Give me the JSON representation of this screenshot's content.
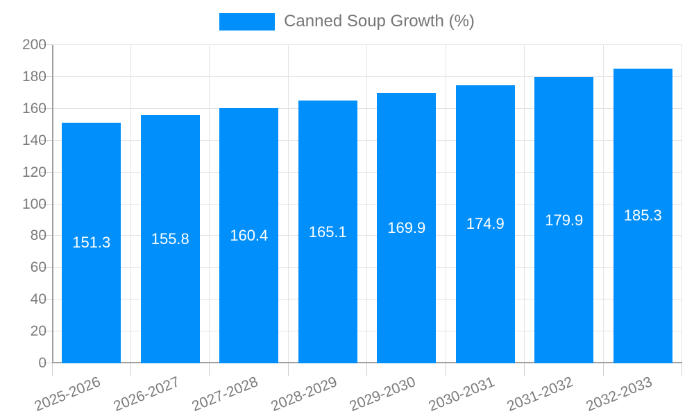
{
  "chart_data": {
    "type": "bar",
    "title": "Canned Soup Growth (%)",
    "legend": {
      "label": "Canned Soup Growth (%)",
      "position": "top-center",
      "swatch_color": "#008FFB"
    },
    "categories": [
      "2025-2026",
      "2026-2027",
      "2027-2028",
      "2028-2029",
      "2029-2030",
      "2030-2031",
      "2031-2032",
      "2032-2033"
    ],
    "series": [
      {
        "name": "Canned Soup Growth (%)",
        "color": "#008FFB",
        "values": [
          151.3,
          155.8,
          160.4,
          165.1,
          169.9,
          174.9,
          179.9,
          185.3
        ]
      }
    ],
    "value_labels": [
      "151.3",
      "155.8",
      "160.4",
      "165.1",
      "169.9",
      "174.9",
      "179.9",
      "185.3"
    ],
    "value_label_color": "#ffffff",
    "xlabel": "",
    "ylabel": "",
    "ylim": [
      0,
      200
    ],
    "ytick_step": 20,
    "ytick_labels": [
      "0",
      "20",
      "40",
      "60",
      "80",
      "100",
      "120",
      "140",
      "160",
      "180",
      "200"
    ],
    "grid": true,
    "x_label_rotation_deg": -22,
    "colors": {
      "bar": "#008FFB",
      "gridline": "#e3e3e3",
      "axis_line": "#9f9f9f",
      "tick": "#cfcfcf",
      "axis_text": "#7b7b7b",
      "legend_text": "#757575",
      "background": "#ffffff"
    }
  }
}
